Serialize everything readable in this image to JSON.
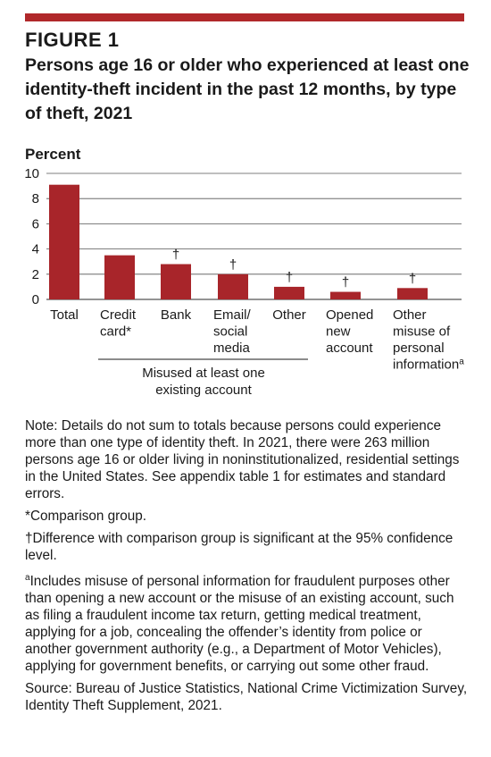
{
  "figure": {
    "label": "FIGURE 1",
    "title": "Persons age 16 or older who experienced at least one identity-theft incident in the past 12 months, by type of theft, 2021",
    "accent_color": "#b0282a",
    "bar_color": "#a8252a"
  },
  "chart_data": {
    "type": "bar",
    "ylabel": "Percent",
    "xlabel": "",
    "ylim": [
      0,
      10
    ],
    "yticks": [
      0,
      2,
      4,
      6,
      8,
      10
    ],
    "grid": true,
    "categories": [
      {
        "lines": [
          "Total"
        ],
        "value": 9.1,
        "marker": ""
      },
      {
        "lines": [
          "Credit",
          "card*"
        ],
        "value": 3.5,
        "marker": ""
      },
      {
        "lines": [
          "Bank"
        ],
        "value": 2.8,
        "marker": "†"
      },
      {
        "lines": [
          "Email/",
          "social",
          "media"
        ],
        "value": 2.0,
        "marker": "†"
      },
      {
        "lines": [
          "Other"
        ],
        "value": 1.0,
        "marker": "†"
      },
      {
        "lines": [
          "Opened",
          "new",
          "account"
        ],
        "value": 0.6,
        "marker": "†"
      },
      {
        "lines": [
          "Other",
          "misuse of",
          "personal",
          "information"
        ],
        "value": 0.9,
        "marker": "†",
        "superscript": "a"
      }
    ],
    "group_label": [
      "Misused at least one",
      "existing account"
    ]
  },
  "notes": {
    "note": "Note: Details do not sum to totals because persons could experience more than one type of identity theft. In 2021, there were 263 million persons age 16 or older living in noninstitutionalized, residential settings in the United States. See appendix table 1 for estimates and standard errors.",
    "comparison": "*Comparison group.",
    "significance": "†Difference with comparison group is significant at the 95% confidence level.",
    "footnote_marker": "a",
    "footnote_a": "Includes misuse of personal information for fraudulent purposes other than opening a new account or the misuse of an existing account, such as filing a fraudulent income tax return, getting medical treatment, applying for a job, concealing the offender’s identity from police or another government authority (e.g., a Department of Motor Vehicles), applying for government benefits, or carrying out some other fraud.",
    "source": "Source: Bureau of Justice Statistics, National Crime Victimization Survey, Identity Theft Supplement, 2021."
  }
}
